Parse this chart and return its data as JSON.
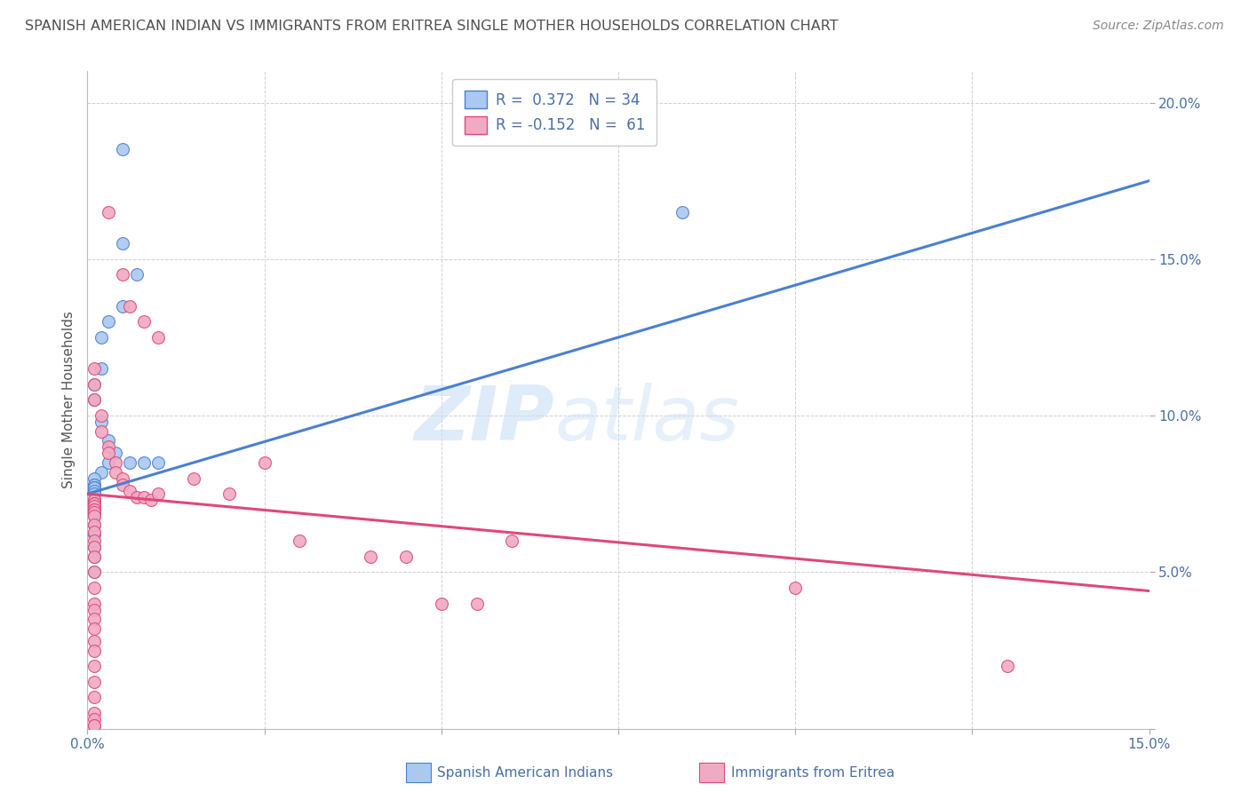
{
  "title": "SPANISH AMERICAN INDIAN VS IMMIGRANTS FROM ERITREA SINGLE MOTHER HOUSEHOLDS CORRELATION CHART",
  "source": "Source: ZipAtlas.com",
  "ylabel": "Single Mother Households",
  "xlim": [
    0,
    0.15
  ],
  "ylim": [
    0,
    0.21
  ],
  "xticks": [
    0.0,
    0.025,
    0.05,
    0.075,
    0.1,
    0.125,
    0.15
  ],
  "yticks": [
    0.0,
    0.05,
    0.1,
    0.15,
    0.2
  ],
  "blue_R": 0.372,
  "blue_N": 34,
  "pink_R": -0.152,
  "pink_N": 61,
  "blue_scatter_x": [
    0.005,
    0.005,
    0.007,
    0.005,
    0.003,
    0.002,
    0.002,
    0.001,
    0.001,
    0.002,
    0.003,
    0.004,
    0.006,
    0.008,
    0.01,
    0.003,
    0.002,
    0.001,
    0.001,
    0.001,
    0.001,
    0.001,
    0.001,
    0.001,
    0.001,
    0.001,
    0.001,
    0.001,
    0.001,
    0.001,
    0.001,
    0.001,
    0.001,
    0.084
  ],
  "blue_scatter_y": [
    0.185,
    0.155,
    0.145,
    0.135,
    0.13,
    0.125,
    0.115,
    0.11,
    0.105,
    0.098,
    0.092,
    0.088,
    0.085,
    0.085,
    0.085,
    0.085,
    0.082,
    0.08,
    0.078,
    0.078,
    0.077,
    0.077,
    0.077,
    0.076,
    0.075,
    0.073,
    0.07,
    0.068,
    0.065,
    0.062,
    0.058,
    0.055,
    0.05,
    0.165
  ],
  "pink_scatter_x": [
    0.003,
    0.005,
    0.006,
    0.008,
    0.01,
    0.001,
    0.001,
    0.001,
    0.002,
    0.002,
    0.003,
    0.003,
    0.004,
    0.004,
    0.005,
    0.005,
    0.006,
    0.007,
    0.008,
    0.009,
    0.001,
    0.001,
    0.001,
    0.001,
    0.001,
    0.001,
    0.001,
    0.001,
    0.001,
    0.001,
    0.001,
    0.001,
    0.001,
    0.001,
    0.001,
    0.001,
    0.001,
    0.001,
    0.001,
    0.001,
    0.001,
    0.001,
    0.001,
    0.001,
    0.001,
    0.001,
    0.001,
    0.001,
    0.001,
    0.01,
    0.015,
    0.02,
    0.025,
    0.03,
    0.04,
    0.045,
    0.05,
    0.055,
    0.06,
    0.1,
    0.13
  ],
  "pink_scatter_y": [
    0.165,
    0.145,
    0.135,
    0.13,
    0.125,
    0.115,
    0.11,
    0.105,
    0.1,
    0.095,
    0.09,
    0.088,
    0.085,
    0.082,
    0.08,
    0.078,
    0.076,
    0.074,
    0.074,
    0.073,
    0.073,
    0.073,
    0.072,
    0.072,
    0.071,
    0.07,
    0.07,
    0.069,
    0.068,
    0.065,
    0.063,
    0.06,
    0.058,
    0.055,
    0.05,
    0.045,
    0.04,
    0.038,
    0.035,
    0.032,
    0.028,
    0.025,
    0.02,
    0.015,
    0.01,
    0.005,
    0.003,
    0.001,
    0.001,
    0.075,
    0.08,
    0.075,
    0.085,
    0.06,
    0.055,
    0.055,
    0.04,
    0.04,
    0.06,
    0.045,
    0.02
  ],
  "blue_line_x": [
    0.0,
    0.15
  ],
  "blue_line_y": [
    0.075,
    0.175
  ],
  "pink_line_x": [
    0.0,
    0.15
  ],
  "pink_line_y": [
    0.075,
    0.044
  ],
  "blue_color": "#aac8f0",
  "pink_color": "#f0aac4",
  "blue_line_color": "#4a80d0",
  "pink_line_color": "#e04878",
  "watermark_zip": "ZIP",
  "watermark_atlas": "atlas",
  "background_color": "#ffffff",
  "grid_color": "#d0d0d0",
  "title_color": "#505050",
  "axis_color": "#4a6fa5",
  "source_color": "#888888"
}
